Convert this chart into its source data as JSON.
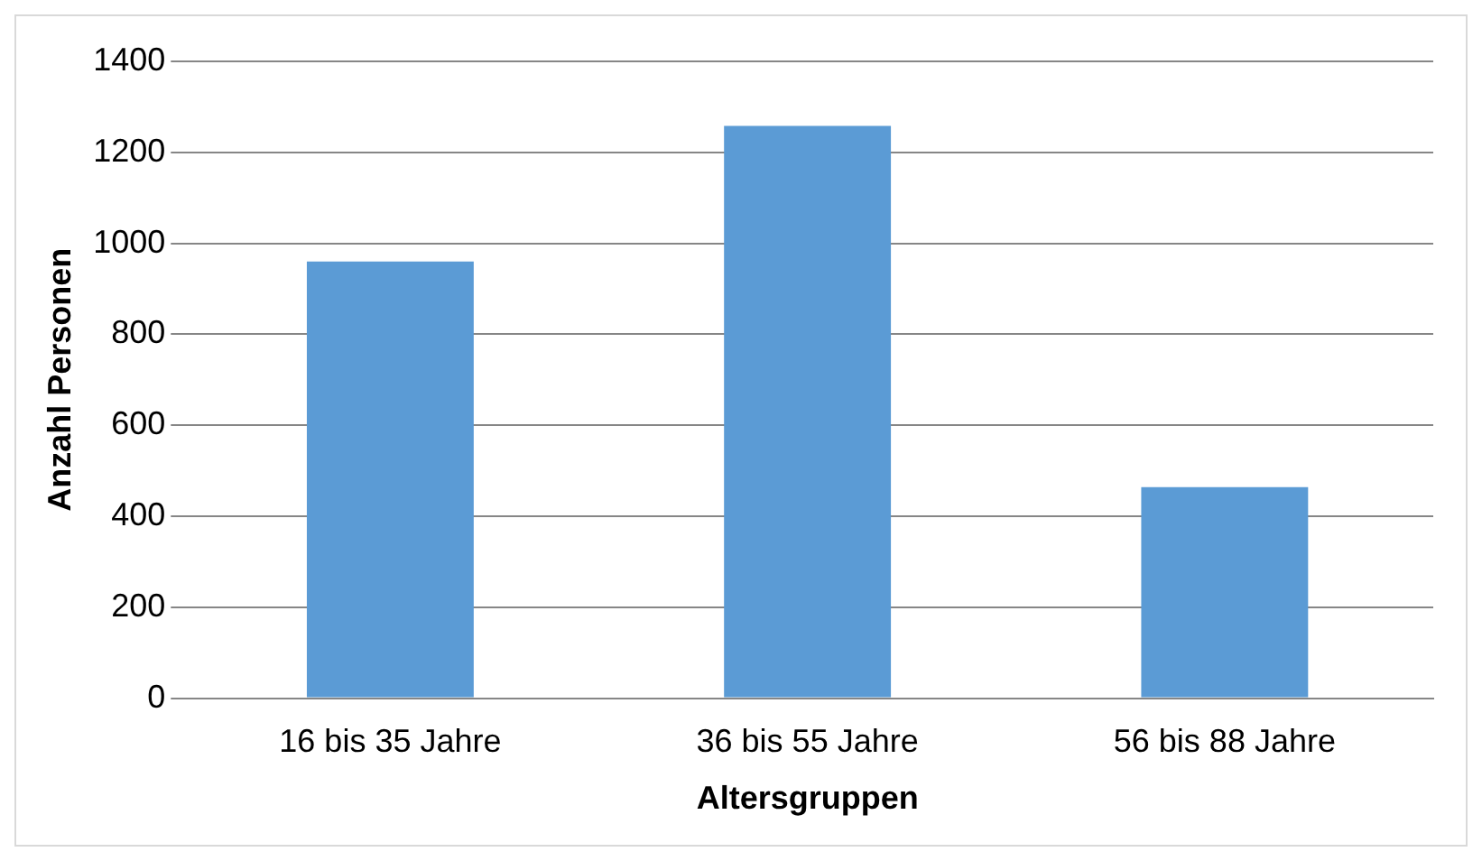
{
  "chart_data": {
    "type": "bar",
    "xlabel": "Altersgruppen",
    "ylabel": "Anzahl Personen",
    "categories": [
      "16 bis 35 Jahre",
      "36 bis 55 Jahre",
      "56 bis 88 Jahre"
    ],
    "values": [
      960,
      1258,
      464
    ],
    "color": "#5b9bd5",
    "ylim": [
      0,
      1400
    ],
    "yticks": [
      0,
      200,
      400,
      600,
      800,
      1000,
      1200,
      1400
    ],
    "grid": "y",
    "legend": false
  }
}
